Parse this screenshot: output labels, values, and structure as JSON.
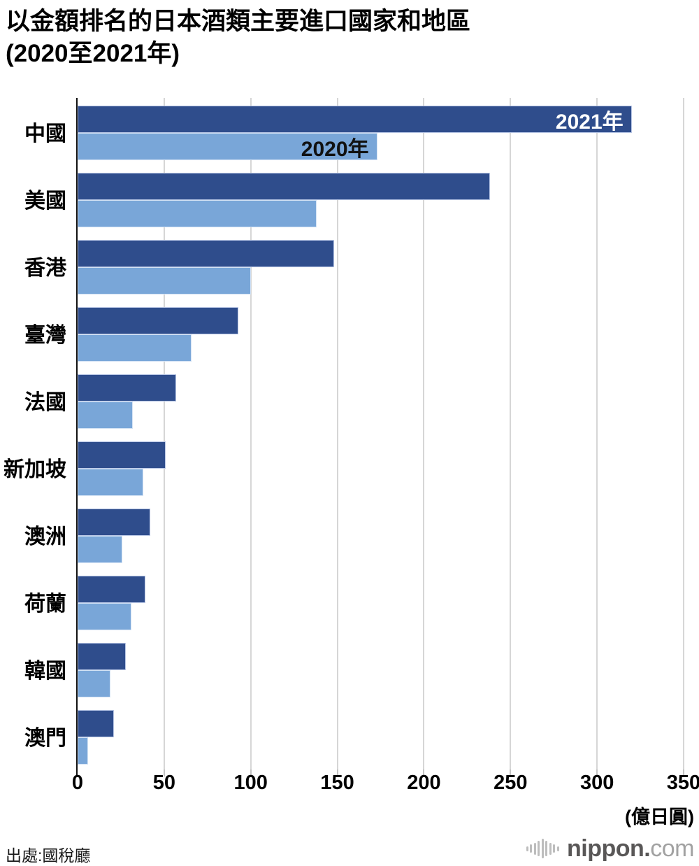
{
  "title": {
    "line1": "以金額排名的日本酒類主要進口國家和地區",
    "line2": "(2020至2021年)"
  },
  "chart_data": {
    "type": "bar",
    "orientation": "horizontal",
    "title": "以金額排名的日本酒類主要進口國家和地區(2020至2021年)",
    "unit_label": "(億日圓)",
    "categories": [
      "中國",
      "美國",
      "香港",
      "臺灣",
      "法國",
      "新加坡",
      "澳洲",
      "荷蘭",
      "韓國",
      "澳門"
    ],
    "series": [
      {
        "name": "2021年",
        "color": "#2f4d8c",
        "label_color": "#ffffff",
        "values": [
          320,
          238,
          148,
          93,
          57,
          51,
          42,
          39,
          28,
          21
        ]
      },
      {
        "name": "2020年",
        "color": "#79a6d8",
        "label_color": "#111111",
        "values": [
          173,
          138,
          100,
          66,
          32,
          38,
          26,
          31,
          19,
          6
        ]
      }
    ],
    "x_ticks": [
      0,
      50,
      100,
      150,
      200,
      250,
      300,
      350
    ],
    "xlim": [
      0,
      350
    ],
    "grid": true,
    "legend_position": "inside-first-group-bars"
  },
  "footer": {
    "source": "出處:國稅廳",
    "logo": {
      "icon": "audio-wave-icon",
      "brand": "nippon.",
      "suffix": "com"
    }
  }
}
